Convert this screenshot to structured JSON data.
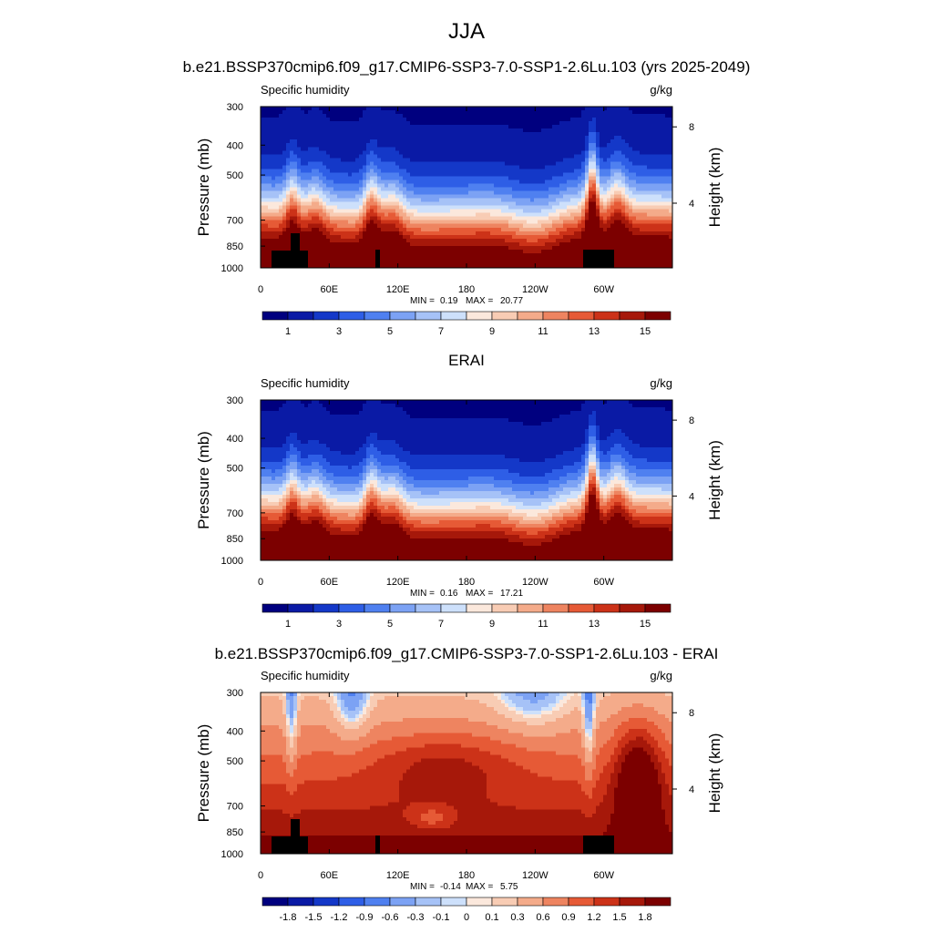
{
  "main_title": "JJA",
  "chart_data": [
    {
      "type": "heatmap",
      "title": "b.e21.BSSP370cmip6.f09_g17.CMIP6-SSP3-7.0-SSP1-2.6Lu.103 (yrs 2025-2049)",
      "variable": "Specific humidity",
      "units": "g/kg",
      "xlabel": "",
      "ylabel": "Pressure (mb)",
      "y2label": "Height (km)",
      "x_ticks": [
        "0",
        "60E",
        "120E",
        "180",
        "120W",
        "60W"
      ],
      "y_ticks": [
        300,
        400,
        500,
        700,
        850,
        1000
      ],
      "y2_ticks": [
        8,
        4
      ],
      "y_scale": "log",
      "ylim": [
        1000,
        300
      ],
      "stats": {
        "min_label": "MIN =",
        "min": "0.19",
        "max_label": "MAX =",
        "max": "20.77"
      },
      "colorbar_labels": [
        "1",
        "3",
        "5",
        "7",
        "9",
        "11",
        "13",
        "15"
      ],
      "colorbar_colors": [
        "#00007f",
        "#0a1aa5",
        "#1438c8",
        "#2e5ee6",
        "#4f80f0",
        "#7ca2f4",
        "#a6c2f7",
        "#cde0fb",
        "#fbe8dc",
        "#f8ccb4",
        "#f4ab8a",
        "#ee8460",
        "#e65a36",
        "#cc3218",
        "#a6180a",
        "#7c0000"
      ],
      "field": "absolute"
    },
    {
      "type": "heatmap",
      "title": "ERAI",
      "variable": "Specific humidity",
      "units": "g/kg",
      "xlabel": "",
      "ylabel": "Pressure (mb)",
      "y2label": "Height (km)",
      "x_ticks": [
        "0",
        "60E",
        "120E",
        "180",
        "120W",
        "60W"
      ],
      "y_ticks": [
        300,
        400,
        500,
        700,
        850,
        1000
      ],
      "y2_ticks": [
        8,
        4
      ],
      "y_scale": "log",
      "ylim": [
        1000,
        300
      ],
      "stats": {
        "min_label": "MIN =",
        "min": "0.16",
        "max_label": "MAX =",
        "max": "17.21"
      },
      "colorbar_labels": [
        "1",
        "3",
        "5",
        "7",
        "9",
        "11",
        "13",
        "15"
      ],
      "colorbar_colors": [
        "#00007f",
        "#0a1aa5",
        "#1438c8",
        "#2e5ee6",
        "#4f80f0",
        "#7ca2f4",
        "#a6c2f7",
        "#cde0fb",
        "#fbe8dc",
        "#f8ccb4",
        "#f4ab8a",
        "#ee8460",
        "#e65a36",
        "#cc3218",
        "#a6180a",
        "#7c0000"
      ],
      "field": "absolute"
    },
    {
      "type": "heatmap",
      "title": "b.e21.BSSP370cmip6.f09_g17.CMIP6-SSP3-7.0-SSP1-2.6Lu.103 - ERAI",
      "variable": "Specific humidity",
      "units": "g/kg",
      "xlabel": "",
      "ylabel": "Pressure (mb)",
      "y2label": "Height (km)",
      "x_ticks": [
        "0",
        "60E",
        "120E",
        "180",
        "120W",
        "60W"
      ],
      "y_ticks": [
        300,
        400,
        500,
        700,
        850,
        1000
      ],
      "y2_ticks": [
        8,
        4
      ],
      "y_scale": "log",
      "ylim": [
        1000,
        300
      ],
      "stats": {
        "min_label": "MIN =",
        "min": "-0.14",
        "max_label": "MAX =",
        "max": "5.75"
      },
      "colorbar_labels": [
        "-1.8",
        "-1.5",
        "-1.2",
        "-0.9",
        "-0.6",
        "-0.3",
        "-0.1",
        "0",
        "0.1",
        "0.3",
        "0.6",
        "0.9",
        "1.2",
        "1.5",
        "1.8"
      ],
      "colorbar_colors": [
        "#00007f",
        "#0a1aa5",
        "#1438c8",
        "#2e5ee6",
        "#4f80f0",
        "#7ca2f4",
        "#a6c2f7",
        "#cde0fb",
        "#fbe8dc",
        "#f8ccb4",
        "#f4ab8a",
        "#ee8460",
        "#e65a36",
        "#cc3218",
        "#a6180a",
        "#7c0000"
      ],
      "field": "difference"
    }
  ]
}
